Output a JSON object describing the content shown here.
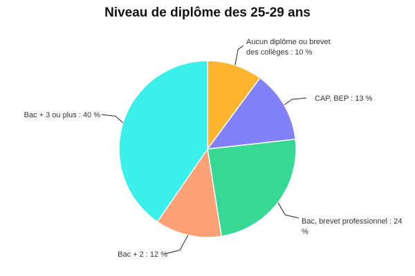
{
  "chart_data": {
    "type": "pie",
    "title": "Niveau de diplôme des 25-29 ans",
    "slices": [
      {
        "label_lines": [
          "Aucun diplôme ou brevet",
          "des collèges : 10 %"
        ],
        "category": "Aucun diplôme ou brevet des collèges",
        "value": 10,
        "color": "#fdb42f"
      },
      {
        "label_lines": [
          "CAP, BEP : 13 %"
        ],
        "category": "CAP, BEP",
        "value": 13,
        "color": "#8281fa"
      },
      {
        "label_lines": [
          "Bac, brevet professionnel : 24",
          "%"
        ],
        "category": "Bac, brevet professionnel",
        "value": 24,
        "color": "#35d993"
      },
      {
        "label_lines": [
          "Bac + 2 : 12 %"
        ],
        "category": "Bac + 2",
        "value": 12,
        "color": "#fea076"
      },
      {
        "label_lines": [
          "Bac + 3 ou plus : 40 %"
        ],
        "category": "Bac + 3 ou plus",
        "value": 40,
        "color": "#3cf0ea"
      }
    ]
  }
}
